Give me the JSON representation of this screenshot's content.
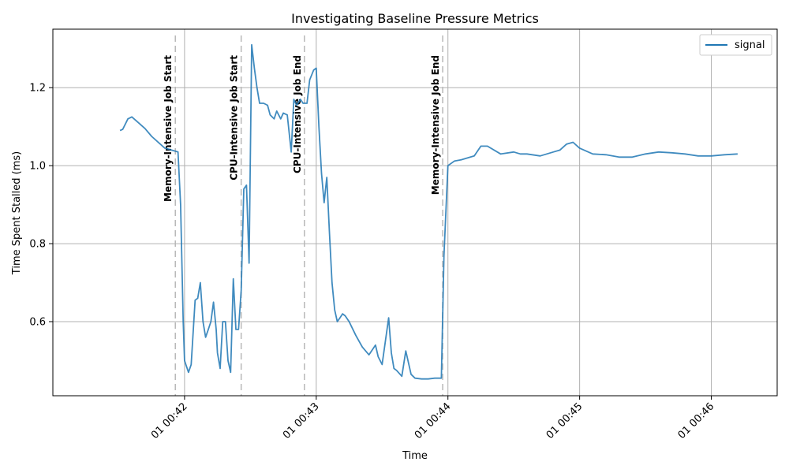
{
  "chart_data": {
    "type": "line",
    "title": "Investigating Baseline Pressure Metrics",
    "xlabel": "Time",
    "ylabel": "Time Spent Stalled (ms)",
    "x_unit": "minutes after 00:41:00",
    "xlim": [
      41.0,
      46.5
    ],
    "ylim": [
      0.41,
      1.35
    ],
    "x_ticks": [
      {
        "value": 42,
        "label": "01 00:42"
      },
      {
        "value": 43,
        "label": "01 00:43"
      },
      {
        "value": 44,
        "label": "01 00:44"
      },
      {
        "value": 45,
        "label": "01 00:45"
      },
      {
        "value": 46,
        "label": "01 00:46"
      }
    ],
    "y_ticks": [
      {
        "value": 0.6,
        "label": "0.6"
      },
      {
        "value": 0.8,
        "label": "0.8"
      },
      {
        "value": 1.0,
        "label": "1.0"
      },
      {
        "value": 1.2,
        "label": "1.2"
      }
    ],
    "grid": true,
    "legend_position": "top-right",
    "annotations": [
      {
        "x": 41.93,
        "label": "Memory-Intensive Job Start"
      },
      {
        "x": 42.43,
        "label": "CPU-Intensive Job Start"
      },
      {
        "x": 42.91,
        "label": "CPU-Intensive Job End"
      },
      {
        "x": 43.96,
        "label": "Memory-Intensive Job End"
      }
    ],
    "series": [
      {
        "name": "signal",
        "color": "#1f77b4",
        "x": [
          41.51,
          41.53,
          41.57,
          41.6,
          41.65,
          41.7,
          41.75,
          41.85,
          41.95,
          41.97,
          41.99,
          42.0,
          42.03,
          42.05,
          42.08,
          42.1,
          42.12,
          42.14,
          42.16,
          42.18,
          42.2,
          42.22,
          42.24,
          42.25,
          42.27,
          42.29,
          42.31,
          42.33,
          42.35,
          42.37,
          42.39,
          42.41,
          42.43,
          42.45,
          42.47,
          42.49,
          42.51,
          42.53,
          42.55,
          42.57,
          42.6,
          42.63,
          42.65,
          42.68,
          42.7,
          42.73,
          42.75,
          42.78,
          42.81,
          42.83,
          42.85,
          42.88,
          42.9,
          42.93,
          42.95,
          42.98,
          43.0,
          43.02,
          43.04,
          43.06,
          43.08,
          43.1,
          43.12,
          43.14,
          43.16,
          43.18,
          43.2,
          43.22,
          43.25,
          43.3,
          43.35,
          43.4,
          43.45,
          43.47,
          43.5,
          43.55,
          43.57,
          43.59,
          43.61,
          43.65,
          43.68,
          43.72,
          43.75,
          43.8,
          43.85,
          43.9,
          43.95,
          43.97,
          44.0,
          44.05,
          44.1,
          44.2,
          44.25,
          44.3,
          44.4,
          44.5,
          44.55,
          44.6,
          44.7,
          44.8,
          44.85,
          44.9,
          44.95,
          45.0,
          45.1,
          45.2,
          45.3,
          45.4,
          45.5,
          45.6,
          45.7,
          45.8,
          45.9,
          46.0,
          46.1,
          46.2
        ],
        "y": [
          1.09,
          1.093,
          1.12,
          1.125,
          1.11,
          1.095,
          1.075,
          1.045,
          1.035,
          0.9,
          0.6,
          0.5,
          0.47,
          0.49,
          0.655,
          0.66,
          0.7,
          0.6,
          0.56,
          0.58,
          0.6,
          0.65,
          0.58,
          0.52,
          0.48,
          0.6,
          0.6,
          0.5,
          0.47,
          0.71,
          0.58,
          0.58,
          0.68,
          0.94,
          0.95,
          0.75,
          1.31,
          1.25,
          1.2,
          1.16,
          1.16,
          1.155,
          1.13,
          1.12,
          1.14,
          1.12,
          1.135,
          1.13,
          1.035,
          1.17,
          1.155,
          1.17,
          1.16,
          1.16,
          1.22,
          1.245,
          1.25,
          1.1,
          0.98,
          0.905,
          0.97,
          0.83,
          0.7,
          0.63,
          0.6,
          0.61,
          0.62,
          0.615,
          0.6,
          0.565,
          0.535,
          0.515,
          0.54,
          0.51,
          0.49,
          0.61,
          0.52,
          0.48,
          0.475,
          0.46,
          0.525,
          0.465,
          0.455,
          0.453,
          0.453,
          0.455,
          0.455,
          0.77,
          1.0,
          1.012,
          1.015,
          1.025,
          1.05,
          1.05,
          1.03,
          1.035,
          1.03,
          1.03,
          1.025,
          1.035,
          1.04,
          1.055,
          1.06,
          1.045,
          1.03,
          1.028,
          1.022,
          1.022,
          1.03,
          1.035,
          1.033,
          1.03,
          1.025,
          1.025,
          1.028,
          1.03
        ]
      }
    ]
  }
}
